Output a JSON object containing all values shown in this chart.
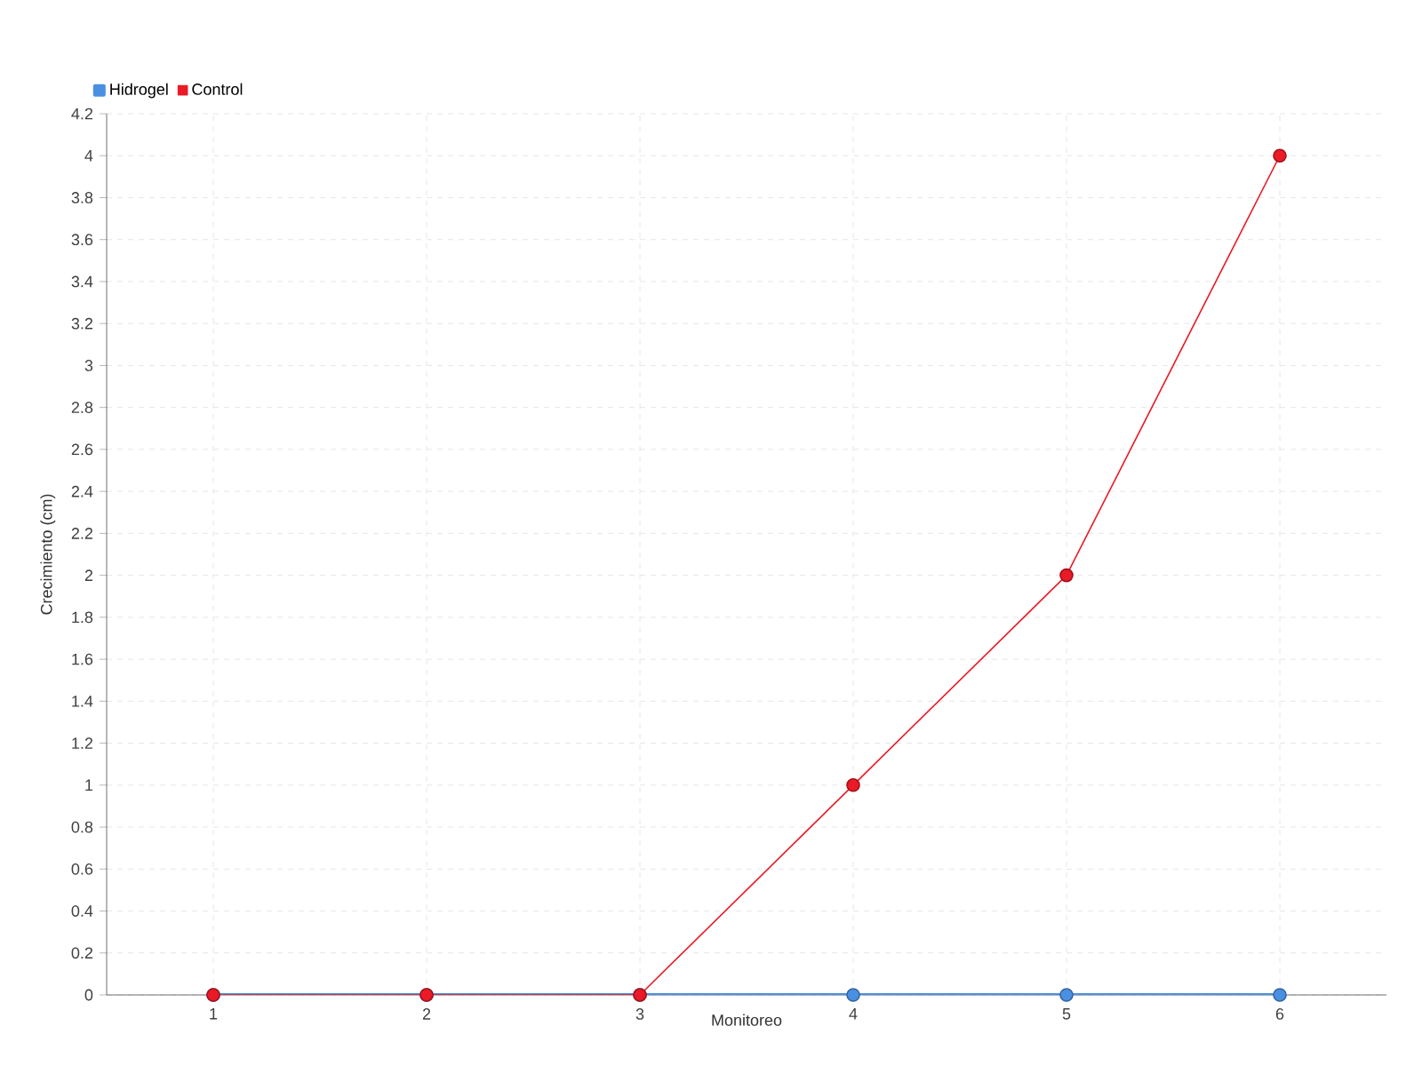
{
  "chart_data": {
    "type": "line",
    "xlabel": "Monitoreo",
    "ylabel": "Crecimiento (cm)",
    "categories": [
      "1",
      "2",
      "3",
      "4",
      "5",
      "6"
    ],
    "series": [
      {
        "name": "Hidrogel",
        "color": "#4a90e2",
        "values": [
          0,
          0,
          0,
          0,
          0,
          0
        ]
      },
      {
        "name": "Control",
        "color": "#ea1a26",
        "values": [
          0,
          0,
          0,
          1,
          2,
          4
        ]
      }
    ],
    "ylim": [
      0,
      4.2
    ],
    "yticks": [
      0,
      0.2,
      0.4,
      0.6,
      0.8,
      1,
      1.2,
      1.4,
      1.6,
      1.8,
      2,
      2.2,
      2.4,
      2.6,
      2.8,
      3,
      3.2,
      3.4,
      3.6,
      3.8,
      4,
      4.2
    ],
    "grid": true,
    "legend": "top left",
    "marker": "circle",
    "line_style": "solid"
  }
}
